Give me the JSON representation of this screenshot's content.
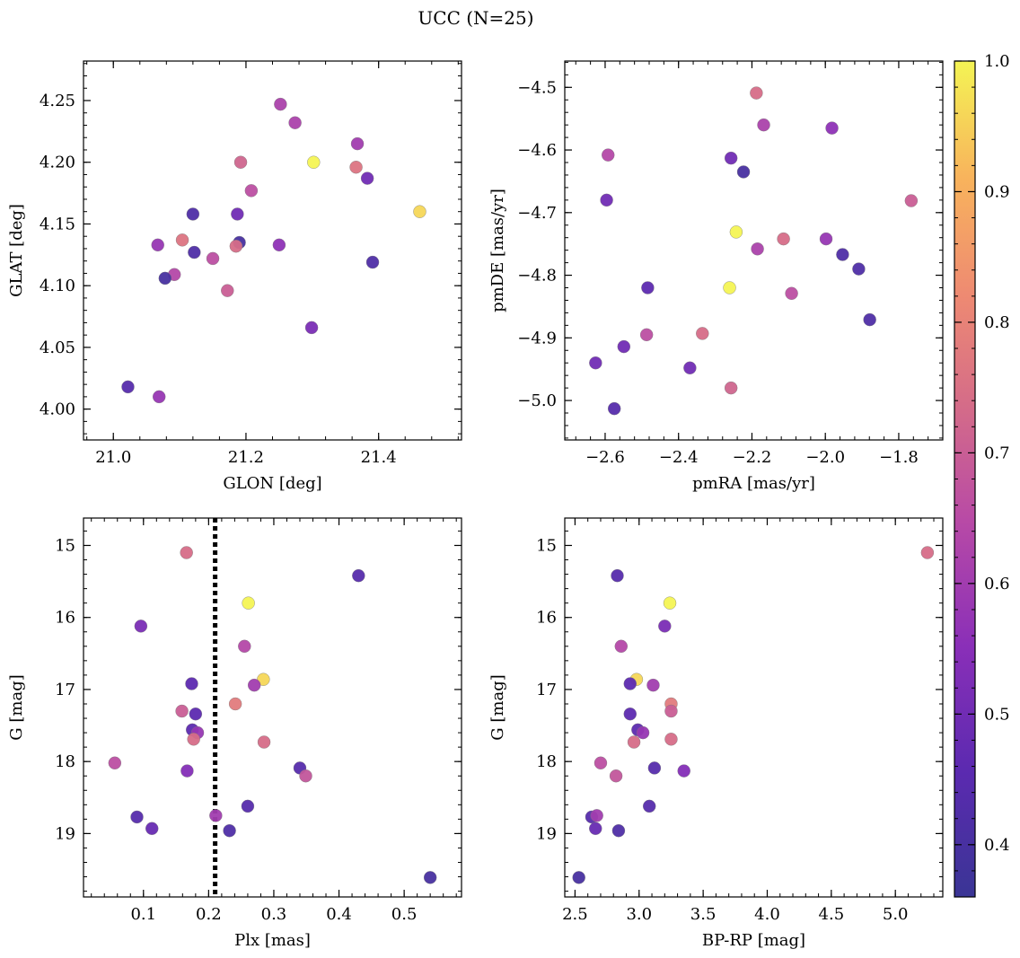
{
  "figure": {
    "title": "UCC (N=25)"
  },
  "colorbar": {
    "min": 0.36,
    "max": 1.0,
    "ticks": [
      0.4,
      0.5,
      0.6,
      0.7,
      0.8,
      0.9,
      1.0
    ],
    "tick_labels": [
      "0.4",
      "0.5",
      "0.6",
      "0.7",
      "0.8",
      "0.9",
      "1.0"
    ],
    "colormap": "plasma"
  },
  "chart_data": [
    {
      "type": "scatter",
      "name": "glon-glat",
      "xlabel": "GLON [deg]",
      "ylabel": "GLAT [deg]",
      "xlim": [
        20.955,
        21.525
      ],
      "ylim": [
        3.975,
        4.282
      ],
      "y_inverted": false,
      "xticks": [
        21.0,
        21.2,
        21.4
      ],
      "xtick_labels": [
        "21.0",
        "21.2",
        "21.4"
      ],
      "yticks": [
        4.0,
        4.05,
        4.1,
        4.15,
        4.2,
        4.25
      ],
      "ytick_labels": [
        "4.00",
        "4.05",
        "4.10",
        "4.15",
        "4.20",
        "4.25"
      ],
      "points": [
        {
          "x": 21.252,
          "y": 4.247,
          "c": 0.62
        },
        {
          "x": 21.274,
          "y": 4.232,
          "c": 0.62
        },
        {
          "x": 21.368,
          "y": 4.215,
          "c": 0.6
        },
        {
          "x": 21.302,
          "y": 4.2,
          "c": 1.0
        },
        {
          "x": 21.192,
          "y": 4.2,
          "c": 0.72
        },
        {
          "x": 21.366,
          "y": 4.196,
          "c": 0.76
        },
        {
          "x": 21.383,
          "y": 4.187,
          "c": 0.5
        },
        {
          "x": 21.208,
          "y": 4.177,
          "c": 0.66
        },
        {
          "x": 21.462,
          "y": 4.16,
          "c": 0.96
        },
        {
          "x": 21.12,
          "y": 4.158,
          "c": 0.42
        },
        {
          "x": 21.187,
          "y": 4.158,
          "c": 0.5
        },
        {
          "x": 21.19,
          "y": 4.135,
          "c": 0.4
        },
        {
          "x": 21.25,
          "y": 4.133,
          "c": 0.56
        },
        {
          "x": 21.067,
          "y": 4.133,
          "c": 0.58
        },
        {
          "x": 21.104,
          "y": 4.137,
          "c": 0.76
        },
        {
          "x": 21.185,
          "y": 4.132,
          "c": 0.74
        },
        {
          "x": 21.122,
          "y": 4.127,
          "c": 0.42
        },
        {
          "x": 21.15,
          "y": 4.122,
          "c": 0.66
        },
        {
          "x": 21.391,
          "y": 4.119,
          "c": 0.42
        },
        {
          "x": 21.092,
          "y": 4.109,
          "c": 0.64
        },
        {
          "x": 21.078,
          "y": 4.106,
          "c": 0.4
        },
        {
          "x": 21.172,
          "y": 4.096,
          "c": 0.7
        },
        {
          "x": 21.299,
          "y": 4.066,
          "c": 0.52
        },
        {
          "x": 21.022,
          "y": 4.018,
          "c": 0.44
        },
        {
          "x": 21.069,
          "y": 4.01,
          "c": 0.58
        }
      ]
    },
    {
      "type": "scatter",
      "name": "pmra-pmde",
      "xlabel": "pmRA [mas/yr]",
      "ylabel": "pmDE [mas/yr]",
      "xlim": [
        -2.71,
        -1.68
      ],
      "ylim": [
        -5.063,
        -4.458
      ],
      "y_inverted": false,
      "xticks": [
        -2.6,
        -2.4,
        -2.2,
        -2.0,
        -1.8
      ],
      "xtick_labels": [
        "−2.6",
        "−2.4",
        "−2.2",
        "−2.0",
        "−1.8"
      ],
      "yticks": [
        -5.0,
        -4.9,
        -4.8,
        -4.7,
        -4.6,
        -4.5
      ],
      "ytick_labels": [
        "−5.0",
        "−4.9",
        "−4.8",
        "−4.7",
        "−4.6",
        "−4.5"
      ],
      "points": [
        {
          "x": -2.188,
          "y": -4.509,
          "c": 0.74
        },
        {
          "x": -2.168,
          "y": -4.56,
          "c": 0.62
        },
        {
          "x": -1.982,
          "y": -4.565,
          "c": 0.56
        },
        {
          "x": -2.592,
          "y": -4.608,
          "c": 0.64
        },
        {
          "x": -2.257,
          "y": -4.613,
          "c": 0.5
        },
        {
          "x": -2.223,
          "y": -4.635,
          "c": 0.4
        },
        {
          "x": -2.596,
          "y": -4.68,
          "c": 0.5
        },
        {
          "x": -1.766,
          "y": -4.681,
          "c": 0.7
        },
        {
          "x": -2.243,
          "y": -4.731,
          "c": 1.0
        },
        {
          "x": -2.114,
          "y": -4.742,
          "c": 0.74
        },
        {
          "x": -1.998,
          "y": -4.742,
          "c": 0.58
        },
        {
          "x": -2.185,
          "y": -4.758,
          "c": 0.62
        },
        {
          "x": -1.953,
          "y": -4.767,
          "c": 0.42
        },
        {
          "x": -1.909,
          "y": -4.79,
          "c": 0.42
        },
        {
          "x": -2.484,
          "y": -4.82,
          "c": 0.46
        },
        {
          "x": -2.261,
          "y": -4.82,
          "c": 1.0
        },
        {
          "x": -2.092,
          "y": -4.829,
          "c": 0.66
        },
        {
          "x": -1.879,
          "y": -4.871,
          "c": 0.42
        },
        {
          "x": -2.335,
          "y": -4.893,
          "c": 0.74
        },
        {
          "x": -2.487,
          "y": -4.895,
          "c": 0.66
        },
        {
          "x": -2.549,
          "y": -4.914,
          "c": 0.5
        },
        {
          "x": -2.626,
          "y": -4.94,
          "c": 0.5
        },
        {
          "x": -2.369,
          "y": -4.948,
          "c": 0.5
        },
        {
          "x": -2.257,
          "y": -4.98,
          "c": 0.72
        },
        {
          "x": -2.575,
          "y": -5.013,
          "c": 0.44
        }
      ]
    },
    {
      "type": "scatter",
      "name": "plx-g",
      "xlabel": "Plx [mas]",
      "ylabel": "G [mag]",
      "xlim": [
        0.008,
        0.588
      ],
      "ylim": [
        14.62,
        19.88
      ],
      "y_inverted": true,
      "xticks": [
        0.1,
        0.2,
        0.3,
        0.4,
        0.5
      ],
      "xtick_labels": [
        "0.1",
        "0.2",
        "0.3",
        "0.4",
        "0.5"
      ],
      "yticks": [
        15,
        16,
        17,
        18,
        19
      ],
      "ytick_labels": [
        "15",
        "16",
        "17",
        "18",
        "19"
      ],
      "vline": 0.21,
      "points": [
        {
          "x": 0.166,
          "y": 15.1,
          "c": 0.74
        },
        {
          "x": 0.43,
          "y": 15.42,
          "c": 0.44
        },
        {
          "x": 0.261,
          "y": 15.8,
          "c": 1.0
        },
        {
          "x": 0.096,
          "y": 16.12,
          "c": 0.52
        },
        {
          "x": 0.255,
          "y": 16.4,
          "c": 0.64
        },
        {
          "x": 0.284,
          "y": 16.86,
          "c": 0.96
        },
        {
          "x": 0.174,
          "y": 16.92,
          "c": 0.46
        },
        {
          "x": 0.27,
          "y": 16.94,
          "c": 0.6
        },
        {
          "x": 0.241,
          "y": 17.2,
          "c": 0.78
        },
        {
          "x": 0.159,
          "y": 17.3,
          "c": 0.7
        },
        {
          "x": 0.18,
          "y": 17.34,
          "c": 0.46
        },
        {
          "x": 0.175,
          "y": 17.56,
          "c": 0.46
        },
        {
          "x": 0.183,
          "y": 17.6,
          "c": 0.58
        },
        {
          "x": 0.177,
          "y": 17.69,
          "c": 0.74
        },
        {
          "x": 0.285,
          "y": 17.73,
          "c": 0.74
        },
        {
          "x": 0.056,
          "y": 18.02,
          "c": 0.66
        },
        {
          "x": 0.34,
          "y": 18.09,
          "c": 0.44
        },
        {
          "x": 0.167,
          "y": 18.13,
          "c": 0.54
        },
        {
          "x": 0.349,
          "y": 18.2,
          "c": 0.68
        },
        {
          "x": 0.26,
          "y": 18.62,
          "c": 0.44
        },
        {
          "x": 0.09,
          "y": 18.77,
          "c": 0.44
        },
        {
          "x": 0.211,
          "y": 18.75,
          "c": 0.6
        },
        {
          "x": 0.113,
          "y": 18.93,
          "c": 0.48
        },
        {
          "x": 0.232,
          "y": 18.96,
          "c": 0.42
        },
        {
          "x": 0.54,
          "y": 19.61,
          "c": 0.4
        }
      ]
    },
    {
      "type": "scatter",
      "name": "bprp-g",
      "xlabel": "BP-RP [mag]",
      "ylabel": "G [mag]",
      "xlim": [
        2.42,
        5.37
      ],
      "ylim": [
        14.62,
        19.88
      ],
      "y_inverted": true,
      "xticks": [
        2.5,
        3.0,
        3.5,
        4.0,
        4.5,
        5.0
      ],
      "xtick_labels": [
        "2.5",
        "3.0",
        "3.5",
        "4.0",
        "4.5",
        "5.0"
      ],
      "yticks": [
        15,
        16,
        17,
        18,
        19
      ],
      "ytick_labels": [
        "15",
        "16",
        "17",
        "18",
        "19"
      ],
      "points": [
        {
          "x": 5.25,
          "y": 15.1,
          "c": 0.74
        },
        {
          "x": 2.83,
          "y": 15.42,
          "c": 0.44
        },
        {
          "x": 3.24,
          "y": 15.8,
          "c": 1.0
        },
        {
          "x": 3.2,
          "y": 16.12,
          "c": 0.52
        },
        {
          "x": 2.86,
          "y": 16.4,
          "c": 0.64
        },
        {
          "x": 2.98,
          "y": 16.86,
          "c": 0.96
        },
        {
          "x": 2.93,
          "y": 16.92,
          "c": 0.46
        },
        {
          "x": 3.11,
          "y": 16.94,
          "c": 0.6
        },
        {
          "x": 3.25,
          "y": 17.2,
          "c": 0.78
        },
        {
          "x": 3.25,
          "y": 17.3,
          "c": 0.7
        },
        {
          "x": 2.93,
          "y": 17.34,
          "c": 0.46
        },
        {
          "x": 2.99,
          "y": 17.56,
          "c": 0.46
        },
        {
          "x": 3.03,
          "y": 17.6,
          "c": 0.58
        },
        {
          "x": 3.25,
          "y": 17.69,
          "c": 0.74
        },
        {
          "x": 2.96,
          "y": 17.73,
          "c": 0.74
        },
        {
          "x": 2.7,
          "y": 18.02,
          "c": 0.66
        },
        {
          "x": 3.12,
          "y": 18.09,
          "c": 0.44
        },
        {
          "x": 3.35,
          "y": 18.13,
          "c": 0.54
        },
        {
          "x": 2.82,
          "y": 18.2,
          "c": 0.68
        },
        {
          "x": 3.08,
          "y": 18.62,
          "c": 0.44
        },
        {
          "x": 2.63,
          "y": 18.77,
          "c": 0.44
        },
        {
          "x": 2.67,
          "y": 18.75,
          "c": 0.6
        },
        {
          "x": 2.66,
          "y": 18.93,
          "c": 0.48
        },
        {
          "x": 2.84,
          "y": 18.96,
          "c": 0.42
        },
        {
          "x": 2.53,
          "y": 19.61,
          "c": 0.4
        }
      ]
    }
  ]
}
